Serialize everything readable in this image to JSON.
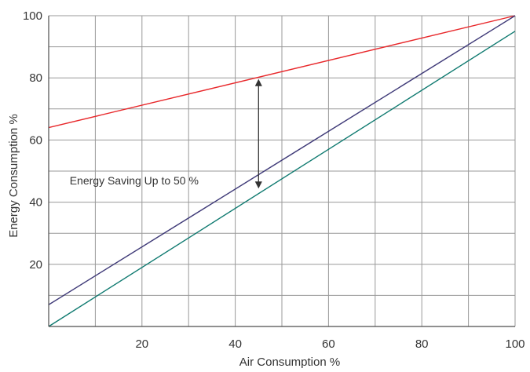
{
  "chart_data": {
    "type": "line",
    "xlabel": "Air Consumption %",
    "ylabel": "Energy Consumption %",
    "xlim": [
      0,
      100
    ],
    "ylim": [
      0,
      100
    ],
    "x_ticks": [
      20,
      40,
      60,
      80,
      100
    ],
    "y_ticks": [
      20,
      40,
      60,
      80,
      100
    ],
    "grid": true,
    "x_grid_step": 10,
    "y_grid_step": 10,
    "series": [
      {
        "color": "#e8282b",
        "x": [
          0,
          100
        ],
        "y": [
          64,
          100
        ]
      },
      {
        "color": "#3f3a78",
        "x": [
          0,
          100
        ],
        "y": [
          7,
          100
        ]
      },
      {
        "color": "#0f7a70",
        "x": [
          0,
          100
        ],
        "y": [
          0,
          95
        ]
      }
    ],
    "annotations": [
      {
        "text": "Energy Saving Up to 50 %",
        "x": 4.5,
        "y": 47
      }
    ],
    "arrow": {
      "x": 45,
      "y_from": 44,
      "y_to": 80,
      "color": "#333333"
    }
  }
}
